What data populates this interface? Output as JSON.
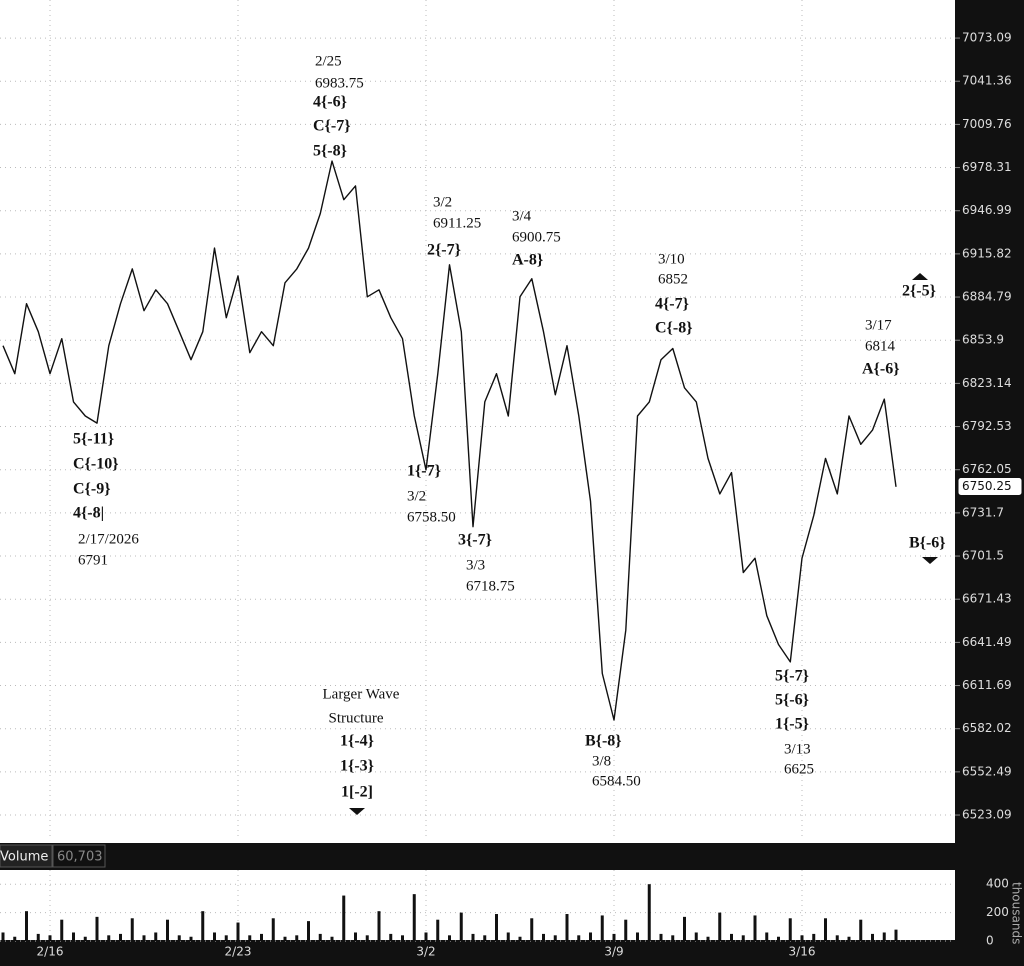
{
  "chart_data": [
    {
      "type": "line",
      "log": true,
      "grid": true,
      "color": "#111111",
      "categories": [
        null,
        null,
        null,
        null,
        "2/16",
        null,
        null,
        null,
        null,
        null,
        null,
        null,
        null,
        null,
        null,
        null,
        null,
        null,
        null,
        null,
        "2/23",
        null,
        null,
        null,
        null,
        null,
        null,
        null,
        null,
        null,
        null,
        null,
        null,
        null,
        null,
        null,
        "3/2",
        null,
        null,
        null,
        null,
        null,
        null,
        null,
        null,
        null,
        null,
        null,
        null,
        null,
        null,
        null,
        "3/9",
        null,
        null,
        null,
        null,
        null,
        null,
        null,
        null,
        null,
        null,
        null,
        null,
        null,
        null,
        null,
        "3/16",
        null,
        null,
        null,
        null,
        null,
        null,
        null,
        null
      ],
      "values": [
        6850,
        6830,
        6880,
        6860,
        6830,
        6855,
        6810,
        6800,
        6795,
        6850,
        6880,
        6905,
        6875,
        6890,
        6880,
        6860,
        6840,
        6860,
        6920,
        6870,
        6900,
        6845,
        6860,
        6850,
        6895,
        6905,
        6920,
        6945,
        6983,
        6955,
        6965,
        6885,
        6890,
        6870,
        6855,
        6800,
        6762,
        6830,
        6908,
        6860,
        6722,
        6810,
        6830,
        6800,
        6885,
        6898,
        6860,
        6815,
        6850,
        6800,
        6740,
        6620,
        6588,
        6650,
        6800,
        6810,
        6840,
        6848,
        6820,
        6810,
        6770,
        6745,
        6760,
        6690,
        6700,
        6660,
        6640,
        6628,
        6700,
        6730,
        6770,
        6745,
        6800,
        6780,
        6790,
        6812,
        6750
      ],
      "ylim": [
        6507.5,
        7101.2
      ],
      "yticks": [
        7073.09,
        7041.36,
        7009.76,
        6978.31,
        6946.99,
        6915.82,
        6884.79,
        6853.9,
        6823.14,
        6792.53,
        6762.05,
        6731.7,
        6701.5,
        6671.43,
        6641.49,
        6611.69,
        6582.02,
        6552.49,
        6523.09
      ],
      "last": 6750.25,
      "annotations": [
        {
          "date": "2/25",
          "price": 6983.75,
          "waves": [
            "4{-6}",
            "C{-7}",
            "5{-8}"
          ]
        },
        {
          "date": "3/2",
          "price": 6911.25,
          "waves": [
            "2{-7}"
          ]
        },
        {
          "date": "3/4",
          "price": 6900.75,
          "waves": [
            "A-8}"
          ]
        },
        {
          "date": "3/10",
          "price": 6852,
          "waves": [
            "4{-7}",
            "C{-8}"
          ]
        },
        {
          "date": "3/17",
          "price": 6814,
          "waves": [
            "A{-6}"
          ]
        },
        {
          "waves": [
            "2{-5}"
          ]
        },
        {
          "waves": [
            "5{-11}",
            "C{-10}",
            "C{-9}",
            "4{-8|"
          ],
          "date": "2/17/2026",
          "price": 6791
        },
        {
          "waves": [
            "1{-7}"
          ],
          "date": "3/2",
          "price": {
            "value": 6758.5,
            "label": "6758.50"
          }
        },
        {
          "waves": [
            "3{-7}"
          ],
          "date": "3/3",
          "price": 6718.75
        },
        {
          "lines": [
            "Larger Wave",
            "Structure"
          ],
          "waves": [
            "1{-4}",
            "1{-3}",
            "1[-2]"
          ]
        },
        {
          "waves": [
            "B{-8}"
          ],
          "date": "3/8",
          "price": {
            "value": 6584.5,
            "label": "6584.50"
          }
        },
        {
          "waves": [
            "5{-7}",
            "5{-6}",
            "1{-5}"
          ],
          "date": "3/13",
          "price": 6625
        },
        {
          "waves": [
            "B{-6}"
          ]
        }
      ]
    },
    {
      "type": "bar",
      "title": "Volume",
      "last": {
        "value": 60703,
        "label": "60,703"
      },
      "unit": "thousands",
      "color": "#111111",
      "values": [
        60,
        30,
        210,
        50,
        40,
        150,
        60,
        30,
        170,
        40,
        50,
        160,
        40,
        60,
        150,
        40,
        30,
        210,
        60,
        40,
        130,
        40,
        50,
        160,
        30,
        40,
        140,
        50,
        30,
        320,
        60,
        40,
        210,
        50,
        40,
        330,
        60,
        150,
        40,
        200,
        50,
        40,
        190,
        60,
        30,
        160,
        50,
        40,
        190,
        40,
        60,
        180,
        50,
        150,
        60,
        400,
        50,
        40,
        170,
        60,
        30,
        200,
        50,
        40,
        180,
        60,
        30,
        160,
        40,
        50,
        160,
        40,
        30,
        150,
        50,
        60,
        80
      ],
      "ylim": [
        0,
        500
      ],
      "yticks": [
        400,
        200,
        0
      ]
    }
  ]
}
